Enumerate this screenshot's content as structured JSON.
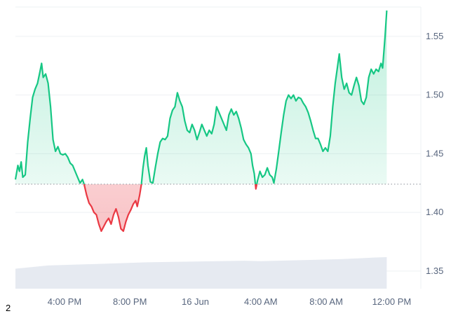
{
  "colors": {
    "up_line": "#16c784",
    "down_line": "#ea3943",
    "up_fill": "#16c784",
    "down_fill": "#ea3943",
    "grid": "#eef0f3",
    "baseline": "#8a8f98",
    "volume": "#e6eaf1",
    "text": "#58667e"
  },
  "footer": {
    "label": "2"
  },
  "chart_data": {
    "type": "area",
    "title": "",
    "xlabel": "",
    "ylabel": "",
    "baseline": 1.424,
    "ylim": [
      1.335,
      1.575
    ],
    "xlim": [
      0,
      24.7
    ],
    "grid": "horizontal",
    "y_ticks": [
      {
        "value": 1.35,
        "label": "1.35"
      },
      {
        "value": 1.4,
        "label": "1.40"
      },
      {
        "value": 1.45,
        "label": "1.45"
      },
      {
        "value": 1.5,
        "label": "1.50"
      },
      {
        "value": 1.55,
        "label": "1.55"
      }
    ],
    "x_ticks": [
      {
        "hours": 3,
        "label": "4:00 PM"
      },
      {
        "hours": 7,
        "label": "8:00 PM"
      },
      {
        "hours": 11,
        "label": "16 Jun"
      },
      {
        "hours": 15,
        "label": "4:00 AM"
      },
      {
        "hours": 19,
        "label": "8:00 AM"
      },
      {
        "hours": 23,
        "label": "12:00 PM"
      }
    ],
    "series": [
      {
        "values": [
          [
            0.0,
            1.428
          ],
          [
            0.15,
            1.44
          ],
          [
            0.25,
            1.435
          ],
          [
            0.35,
            1.443
          ],
          [
            0.45,
            1.43
          ],
          [
            0.6,
            1.432
          ],
          [
            0.75,
            1.46
          ],
          [
            0.9,
            1.48
          ],
          [
            1.05,
            1.498
          ],
          [
            1.2,
            1.505
          ],
          [
            1.35,
            1.51
          ],
          [
            1.5,
            1.52
          ],
          [
            1.6,
            1.527
          ],
          [
            1.7,
            1.515
          ],
          [
            1.85,
            1.518
          ],
          [
            2.0,
            1.51
          ],
          [
            2.15,
            1.49
          ],
          [
            2.3,
            1.462
          ],
          [
            2.45,
            1.452
          ],
          [
            2.6,
            1.456
          ],
          [
            2.75,
            1.45
          ],
          [
            2.9,
            1.449
          ],
          [
            3.05,
            1.45
          ],
          [
            3.2,
            1.447
          ],
          [
            3.35,
            1.442
          ],
          [
            3.5,
            1.44
          ],
          [
            3.65,
            1.435
          ],
          [
            3.8,
            1.43
          ],
          [
            3.95,
            1.425
          ],
          [
            4.1,
            1.428
          ],
          [
            4.2,
            1.424
          ],
          [
            4.35,
            1.415
          ],
          [
            4.5,
            1.408
          ],
          [
            4.65,
            1.405
          ],
          [
            4.8,
            1.4
          ],
          [
            4.95,
            1.398
          ],
          [
            5.1,
            1.39
          ],
          [
            5.25,
            1.384
          ],
          [
            5.4,
            1.388
          ],
          [
            5.55,
            1.392
          ],
          [
            5.7,
            1.395
          ],
          [
            5.85,
            1.39
          ],
          [
            6.0,
            1.398
          ],
          [
            6.15,
            1.403
          ],
          [
            6.3,
            1.396
          ],
          [
            6.45,
            1.386
          ],
          [
            6.6,
            1.384
          ],
          [
            6.75,
            1.392
          ],
          [
            6.9,
            1.398
          ],
          [
            7.05,
            1.402
          ],
          [
            7.2,
            1.407
          ],
          [
            7.35,
            1.41
          ],
          [
            7.45,
            1.405
          ],
          [
            7.6,
            1.415
          ],
          [
            7.7,
            1.424
          ],
          [
            7.8,
            1.438
          ],
          [
            7.9,
            1.448
          ],
          [
            8.0,
            1.455
          ],
          [
            8.1,
            1.44
          ],
          [
            8.25,
            1.426
          ],
          [
            8.4,
            1.425
          ],
          [
            8.55,
            1.438
          ],
          [
            8.7,
            1.45
          ],
          [
            8.85,
            1.46
          ],
          [
            9.0,
            1.463
          ],
          [
            9.15,
            1.462
          ],
          [
            9.3,
            1.465
          ],
          [
            9.45,
            1.48
          ],
          [
            9.6,
            1.487
          ],
          [
            9.75,
            1.49
          ],
          [
            9.9,
            1.502
          ],
          [
            10.05,
            1.495
          ],
          [
            10.2,
            1.49
          ],
          [
            10.35,
            1.478
          ],
          [
            10.5,
            1.47
          ],
          [
            10.65,
            1.468
          ],
          [
            10.8,
            1.475
          ],
          [
            10.95,
            1.47
          ],
          [
            11.1,
            1.462
          ],
          [
            11.25,
            1.468
          ],
          [
            11.4,
            1.475
          ],
          [
            11.55,
            1.47
          ],
          [
            11.7,
            1.465
          ],
          [
            11.85,
            1.47
          ],
          [
            12.0,
            1.467
          ],
          [
            12.15,
            1.475
          ],
          [
            12.3,
            1.49
          ],
          [
            12.45,
            1.485
          ],
          [
            12.6,
            1.48
          ],
          [
            12.75,
            1.475
          ],
          [
            12.9,
            1.47
          ],
          [
            13.05,
            1.483
          ],
          [
            13.2,
            1.488
          ],
          [
            13.35,
            1.483
          ],
          [
            13.5,
            1.486
          ],
          [
            13.65,
            1.48
          ],
          [
            13.8,
            1.472
          ],
          [
            13.95,
            1.462
          ],
          [
            14.1,
            1.458
          ],
          [
            14.25,
            1.455
          ],
          [
            14.4,
            1.45
          ],
          [
            14.5,
            1.44
          ],
          [
            14.6,
            1.433
          ],
          [
            14.7,
            1.42
          ],
          [
            14.8,
            1.427
          ],
          [
            14.95,
            1.435
          ],
          [
            15.1,
            1.43
          ],
          [
            15.25,
            1.432
          ],
          [
            15.4,
            1.438
          ],
          [
            15.55,
            1.432
          ],
          [
            15.7,
            1.43
          ],
          [
            15.8,
            1.425
          ],
          [
            15.95,
            1.437
          ],
          [
            16.1,
            1.452
          ],
          [
            16.25,
            1.468
          ],
          [
            16.4,
            1.483
          ],
          [
            16.55,
            1.495
          ],
          [
            16.7,
            1.5
          ],
          [
            16.85,
            1.497
          ],
          [
            17.0,
            1.5
          ],
          [
            17.15,
            1.495
          ],
          [
            17.3,
            1.498
          ],
          [
            17.45,
            1.497
          ],
          [
            17.6,
            1.493
          ],
          [
            17.75,
            1.49
          ],
          [
            17.9,
            1.485
          ],
          [
            18.05,
            1.478
          ],
          [
            18.2,
            1.47
          ],
          [
            18.35,
            1.463
          ],
          [
            18.5,
            1.463
          ],
          [
            18.65,
            1.458
          ],
          [
            18.8,
            1.452
          ],
          [
            18.95,
            1.455
          ],
          [
            19.1,
            1.452
          ],
          [
            19.25,
            1.465
          ],
          [
            19.4,
            1.49
          ],
          [
            19.55,
            1.51
          ],
          [
            19.7,
            1.525
          ],
          [
            19.8,
            1.535
          ],
          [
            19.95,
            1.515
          ],
          [
            20.1,
            1.505
          ],
          [
            20.25,
            1.51
          ],
          [
            20.4,
            1.502
          ],
          [
            20.55,
            1.5
          ],
          [
            20.7,
            1.508
          ],
          [
            20.85,
            1.515
          ],
          [
            21.0,
            1.508
          ],
          [
            21.15,
            1.495
          ],
          [
            21.3,
            1.492
          ],
          [
            21.45,
            1.498
          ],
          [
            21.6,
            1.515
          ],
          [
            21.75,
            1.522
          ],
          [
            21.9,
            1.518
          ],
          [
            22.05,
            1.522
          ],
          [
            22.2,
            1.52
          ],
          [
            22.35,
            1.527
          ],
          [
            22.45,
            1.523
          ],
          [
            22.6,
            1.55
          ],
          [
            22.7,
            1.572
          ]
        ]
      }
    ],
    "volume_levels": [
      [
        0.0,
        0.5
      ],
      [
        2.0,
        0.58
      ],
      [
        5.0,
        0.62
      ],
      [
        8.0,
        0.66
      ],
      [
        11.0,
        0.68
      ],
      [
        14.0,
        0.7
      ],
      [
        15.0,
        0.69
      ],
      [
        18.0,
        0.72
      ],
      [
        20.0,
        0.74
      ],
      [
        22.0,
        0.78
      ],
      [
        22.7,
        0.79
      ]
    ]
  }
}
